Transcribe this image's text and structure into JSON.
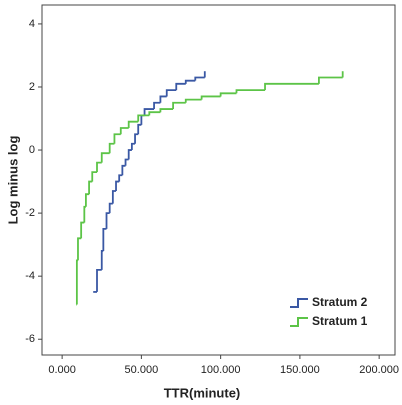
{
  "chart_data": {
    "type": "step",
    "x_label": "TTR(minute)",
    "y_label": "Log minus log",
    "xlim": [
      -12.7,
      210
    ],
    "ylim": [
      -6.5,
      4.6
    ],
    "xticks": [
      {
        "value": 0,
        "label": "0.000"
      },
      {
        "value": 50,
        "label": "50.000"
      },
      {
        "value": 100,
        "label": "100.000"
      },
      {
        "value": 150,
        "label": "150.000"
      },
      {
        "value": 200,
        "label": "200.000"
      }
    ],
    "yticks": [
      -6,
      -4,
      -2,
      0,
      2,
      4
    ],
    "legend_position": "lower right",
    "series": [
      {
        "name": "Stratum 2",
        "color": "#3a58a4",
        "x": [
          19.6,
          22,
          25,
          26,
          28,
          30,
          32,
          34,
          36,
          38,
          40,
          42,
          44,
          46,
          48,
          50,
          52,
          58,
          62,
          66,
          72,
          78,
          84,
          90
        ],
        "values": [
          -4.5,
          -3.8,
          -3.2,
          -2.5,
          -2.0,
          -1.7,
          -1.3,
          -1.0,
          -0.8,
          -0.5,
          -0.3,
          0.0,
          0.2,
          0.5,
          0.8,
          1.1,
          1.3,
          1.5,
          1.7,
          1.9,
          2.1,
          2.2,
          2.3,
          2.5
        ]
      },
      {
        "name": "Stratum 1",
        "color": "#5cc447",
        "x": [
          8.9,
          9.3,
          10,
          12,
          14,
          15,
          17,
          19,
          22,
          25,
          30,
          33,
          37,
          42,
          48,
          55,
          62,
          70,
          78,
          88,
          100,
          110,
          128,
          162,
          177
        ],
        "values": [
          -4.9,
          -3.5,
          -2.8,
          -2.3,
          -1.8,
          -1.4,
          -1.0,
          -0.7,
          -0.4,
          -0.1,
          0.2,
          0.5,
          0.7,
          0.9,
          1.1,
          1.2,
          1.3,
          1.5,
          1.6,
          1.7,
          1.8,
          1.9,
          2.1,
          2.3,
          2.5
        ]
      }
    ]
  }
}
